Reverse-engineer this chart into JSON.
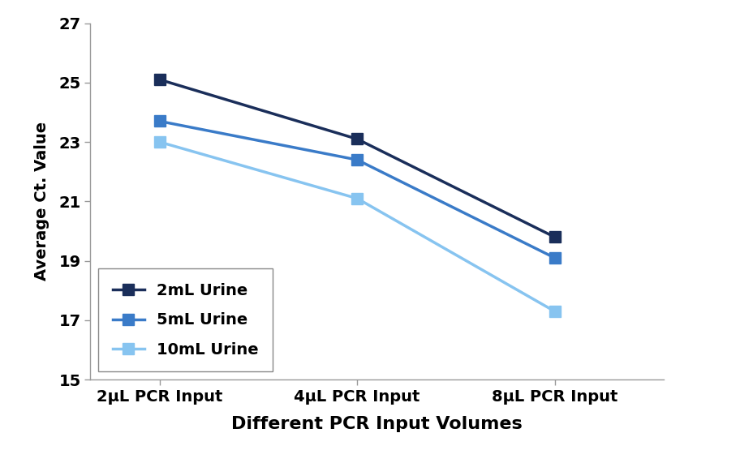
{
  "series": [
    {
      "label": "2mL Urine",
      "values": [
        25.1,
        23.1,
        19.8
      ],
      "color": "#1a2e5a",
      "marker": "s",
      "linewidth": 2.5,
      "markersize": 10
    },
    {
      "label": "5mL Urine",
      "values": [
        23.7,
        22.4,
        19.1
      ],
      "color": "#3a7bc8",
      "marker": "s",
      "linewidth": 2.5,
      "markersize": 10
    },
    {
      "label": "10mL Urine",
      "values": [
        23.0,
        21.1,
        17.3
      ],
      "color": "#87c4f0",
      "marker": "s",
      "linewidth": 2.5,
      "markersize": 10
    }
  ],
  "x_labels": [
    "2μL PCR Input",
    "4μL PCR Input",
    "8μL PCR Input"
  ],
  "x_positions": [
    0,
    1,
    2
  ],
  "ylabel": "Average Ct. Value",
  "xlabel": "Different PCR Input Volumes",
  "ylim": [
    15,
    27
  ],
  "yticks": [
    15,
    17,
    19,
    21,
    23,
    25,
    27
  ],
  "legend_loc": "lower left",
  "background_color": "#ffffff",
  "xlabel_fontsize": 16,
  "ylabel_fontsize": 14,
  "tick_fontsize": 14,
  "legend_fontsize": 14
}
